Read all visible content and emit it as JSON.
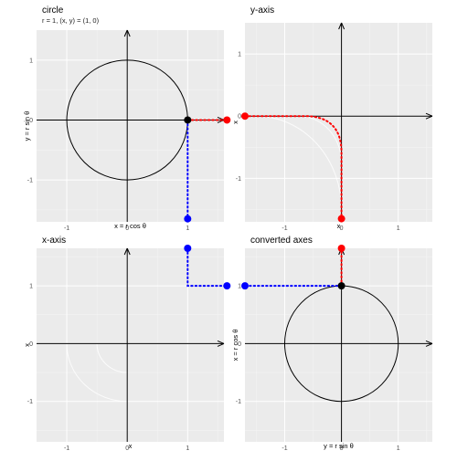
{
  "chart_data": [
    {
      "type": "scatter",
      "title": "circle",
      "subtitle": "r = 1, (x, y) = (1, 0)",
      "xlabel": "x = r cos θ",
      "ylabel": "y = r sin θ",
      "xlim": [
        -1.5,
        1.6
      ],
      "ylim": [
        -1.7,
        1.5
      ],
      "x_ticks": [
        -1,
        0,
        1
      ],
      "y_ticks": [
        -1,
        0,
        1
      ],
      "grid": true,
      "circle": {
        "center": [
          0,
          0
        ],
        "radius": 1
      },
      "points": [
        {
          "x": 1,
          "y": 0,
          "color": "#000000"
        },
        {
          "x": 1.65,
          "y": 0,
          "color": "#ff0000"
        },
        {
          "x": 1,
          "y": -1.65,
          "color": "#0000ff"
        }
      ],
      "dotted_lines": [
        {
          "color": "#ff0000",
          "path": [
            [
              1,
              0
            ],
            [
              1.65,
              0
            ]
          ]
        },
        {
          "color": "#0000ff",
          "path": [
            [
              1,
              0
            ],
            [
              1,
              -1.65
            ]
          ]
        }
      ]
    },
    {
      "type": "line",
      "title": "y-axis",
      "xlabel": "x",
      "ylabel": "x",
      "xlim": [
        -1.7,
        1.6
      ],
      "ylim": [
        -1.7,
        1.5
      ],
      "x_ticks": [
        -1,
        0,
        1
      ],
      "y_ticks": [
        -1,
        0,
        1
      ],
      "grid": true,
      "points": [
        {
          "x": -1.7,
          "y": 0,
          "color": "#ff0000"
        },
        {
          "x": 0,
          "y": -1.65,
          "color": "#ff0000"
        }
      ],
      "dotted_lines": [
        {
          "color": "#ff0000",
          "shape": "quarter-turn",
          "from": [
            -1.7,
            0
          ],
          "to": [
            0,
            -1.65
          ]
        }
      ]
    },
    {
      "type": "line",
      "title": "x-axis",
      "xlabel": "x",
      "ylabel": "x",
      "xlim": [
        -1.5,
        1.6
      ],
      "ylim": [
        -1.7,
        1.65
      ],
      "x_ticks": [
        -1,
        0,
        1
      ],
      "y_ticks": [
        -1,
        0,
        1
      ],
      "grid": true,
      "points": [
        {
          "x": 1,
          "y": 1.65,
          "color": "#0000ff"
        },
        {
          "x": 1.65,
          "y": 1,
          "color": "#0000ff"
        }
      ],
      "dotted_lines": [
        {
          "color": "#0000ff",
          "path": [
            [
              1,
              1.65
            ],
            [
              1,
              1
            ],
            [
              1.65,
              1
            ]
          ]
        }
      ]
    },
    {
      "type": "scatter",
      "title": "converted axes",
      "xlabel": "y = r sin θ",
      "ylabel": "x = r cos θ",
      "xlim": [
        -1.7,
        1.6
      ],
      "ylim": [
        -1.7,
        1.65
      ],
      "x_ticks": [
        -1,
        0,
        1
      ],
      "y_ticks": [
        -1,
        0,
        1
      ],
      "grid": true,
      "circle": {
        "center": [
          0,
          0
        ],
        "radius": 1
      },
      "points": [
        {
          "x": 0,
          "y": 1,
          "color": "#000000"
        },
        {
          "x": 0,
          "y": 1.65,
          "color": "#ff0000"
        },
        {
          "x": -1.7,
          "y": 1,
          "color": "#0000ff"
        }
      ],
      "dotted_lines": [
        {
          "color": "#ff0000",
          "path": [
            [
              0,
              1
            ],
            [
              0,
              1.65
            ]
          ]
        },
        {
          "color": "#0000ff",
          "path": [
            [
              0,
              1
            ],
            [
              -1.7,
              1
            ]
          ]
        }
      ]
    }
  ],
  "colors": {
    "panel_bg": "#ebebeb",
    "grid_major": "#ffffff",
    "axis_arrow": "#000000",
    "red": "#ff0000",
    "blue": "#0000ff",
    "black": "#000000"
  }
}
